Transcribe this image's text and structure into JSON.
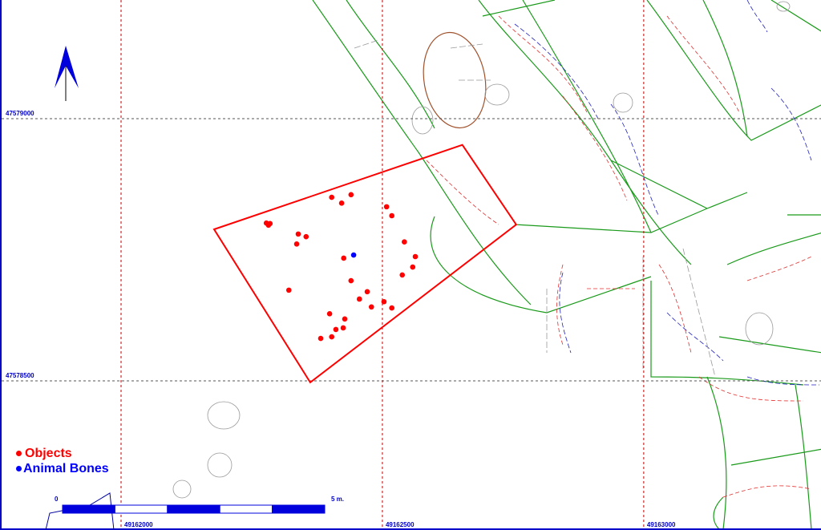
{
  "map": {
    "grid": {
      "eastings": [
        49162000,
        49162500,
        49163000
      ],
      "northings": [
        47579000,
        47578500
      ],
      "easting_labels": [
        "49162000",
        "49162500",
        "49163000"
      ],
      "northing_labels": [
        "47579000",
        "47578500"
      ]
    },
    "north_arrow": "north-arrow-icon",
    "excavation_area": [
      [
        49162178,
        47578789
      ],
      [
        49162653,
        47578950
      ],
      [
        49162756,
        47578798
      ],
      [
        49162362,
        47578497
      ]
    ],
    "objects": [
      [
        49162278,
        47578801
      ],
      [
        49162282,
        47578797
      ],
      [
        49162285,
        47578800
      ],
      [
        49162403,
        47578850
      ],
      [
        49162422,
        47578839
      ],
      [
        49162440,
        47578855
      ],
      [
        49162508,
        47578832
      ],
      [
        49162518,
        47578815
      ],
      [
        49162339,
        47578780
      ],
      [
        49162354,
        47578775
      ],
      [
        49162336,
        47578761
      ],
      [
        49162542,
        47578765
      ],
      [
        49162563,
        47578737
      ],
      [
        49162558,
        47578717
      ],
      [
        49162538,
        47578702
      ],
      [
        49162426,
        47578734
      ],
      [
        49162440,
        47578691
      ],
      [
        49162321,
        47578673
      ],
      [
        49162471,
        47578670
      ],
      [
        49162456,
        47578656
      ],
      [
        49162479,
        47578641
      ],
      [
        49162503,
        47578651
      ],
      [
        49162518,
        47578639
      ],
      [
        49162399,
        47578628
      ],
      [
        49162428,
        47578618
      ],
      [
        49162411,
        47578598
      ],
      [
        49162425,
        47578601
      ],
      [
        49162403,
        47578584
      ],
      [
        49162382,
        47578581
      ]
    ],
    "animal_bones": [
      [
        49162445,
        47578740
      ]
    ],
    "colors": {
      "objects": "#ff0000",
      "animal_bones": "#0000ff",
      "grid": "#c00000",
      "area": "#ff0000",
      "features": "#008000"
    }
  },
  "legend": {
    "objects_label": "Objects",
    "animal_bones_label": "Animal Bones"
  },
  "scale_bar": {
    "start_label": "0",
    "end_label": "5 m.",
    "segments": 5
  }
}
